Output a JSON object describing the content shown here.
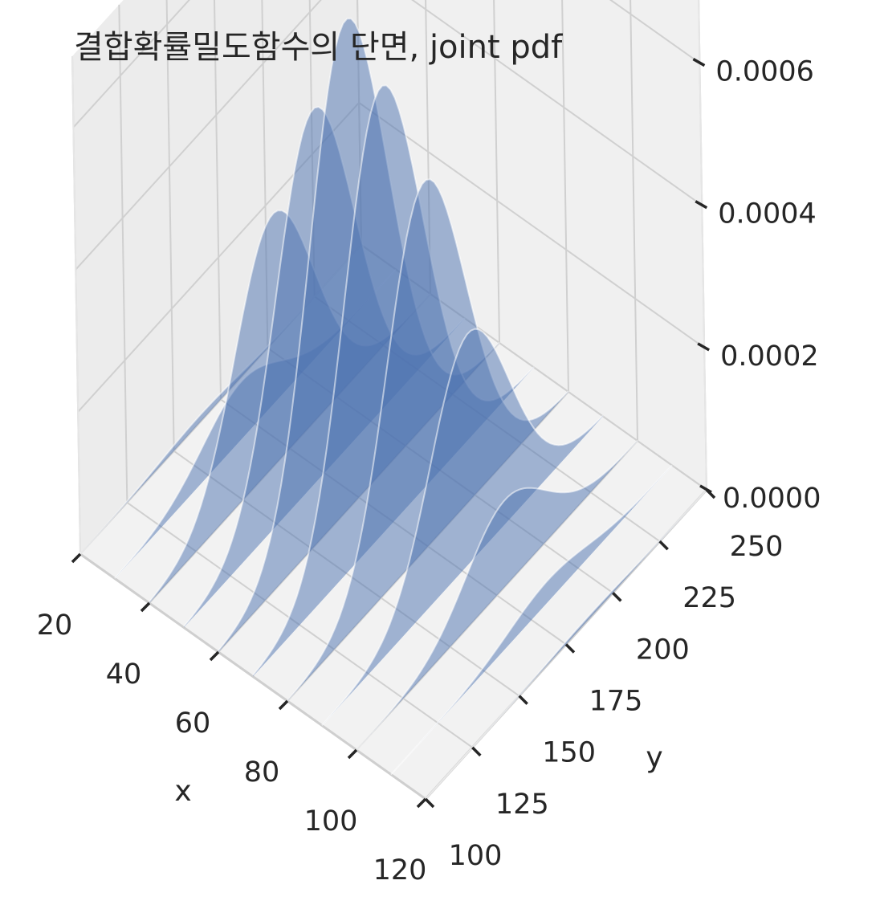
{
  "chart_data": {
    "type": "area",
    "title": "결합확률밀도함수의 단면, joint pdf",
    "xlabel": "x",
    "ylabel": "y",
    "zlabel": "",
    "xlim": [
      20,
      120
    ],
    "ylim": [
      100,
      250
    ],
    "zlim": [
      0,
      0.0007
    ],
    "x_ticks": [
      "20",
      "40",
      "60",
      "80",
      "100",
      "120"
    ],
    "y_ticks": [
      "100",
      "125",
      "150",
      "175",
      "200",
      "225",
      "250"
    ],
    "z_ticks": [
      "0.0000",
      "0.0002",
      "0.0004",
      "0.0006"
    ],
    "slice_x_values": [
      20,
      30,
      40,
      50,
      60,
      70,
      80,
      90,
      100,
      110,
      120
    ],
    "slice_peaks": [
      1e-05,
      8e-05,
      0.00035,
      0.00052,
      0.00068,
      0.00062,
      0.00051,
      0.00032,
      0.00012,
      3e-05,
      5e-06
    ],
    "slice_peak_y": [
      164,
      168,
      168,
      172,
      172,
      172,
      176,
      180,
      180,
      184,
      188
    ],
    "slice_sigma_y": 21,
    "grid": true,
    "fill_color": "#4c72b0",
    "pane_color": "#f2f2f2",
    "grid_color": "#d0d0d0"
  }
}
